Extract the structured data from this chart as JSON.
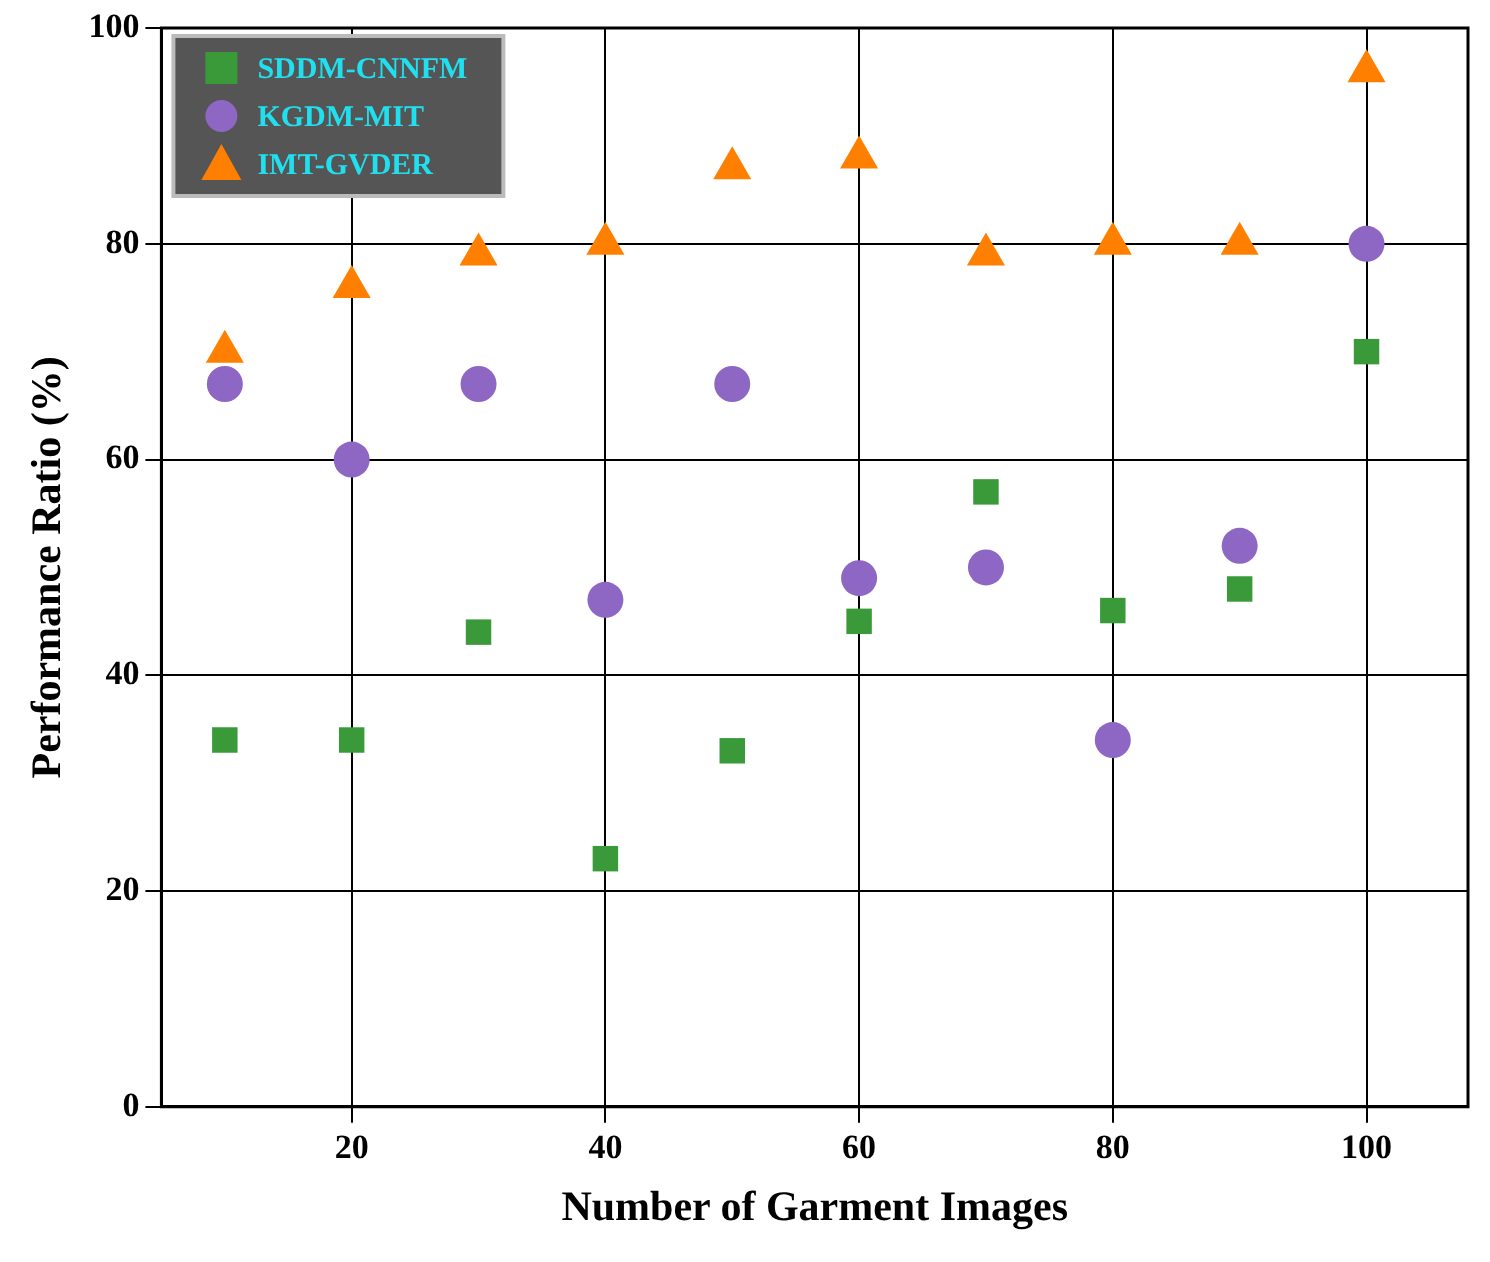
{
  "chart_data": {
    "type": "scatter",
    "xlabel": "Number of Garment Images",
    "ylabel": "Performance Ratio (%)",
    "x": [
      10,
      20,
      30,
      40,
      50,
      60,
      70,
      80,
      90,
      100
    ],
    "series": [
      {
        "name": "SDDM-CNNFM",
        "color": "#3a9a3a",
        "marker": "square",
        "values": [
          34,
          34,
          44,
          23,
          33,
          45,
          57,
          46,
          48,
          70
        ]
      },
      {
        "name": "KGDM-MIT",
        "color": "#8e66c4",
        "marker": "circle",
        "values": [
          67,
          60,
          67,
          47,
          67,
          49,
          50,
          34,
          52,
          80
        ]
      },
      {
        "name": "IMT-GVDER",
        "color": "#ff8000",
        "marker": "triangle",
        "values": [
          70,
          76,
          79,
          80,
          87,
          88,
          79,
          80,
          80,
          96
        ]
      }
    ],
    "xlim": [
      5,
      108
    ],
    "xticks": [
      20,
      40,
      60,
      80,
      100
    ],
    "ylim": [
      0,
      100
    ],
    "yticks": [
      0,
      20,
      40,
      60,
      80,
      100
    ],
    "grid": true,
    "legend": "top left"
  }
}
